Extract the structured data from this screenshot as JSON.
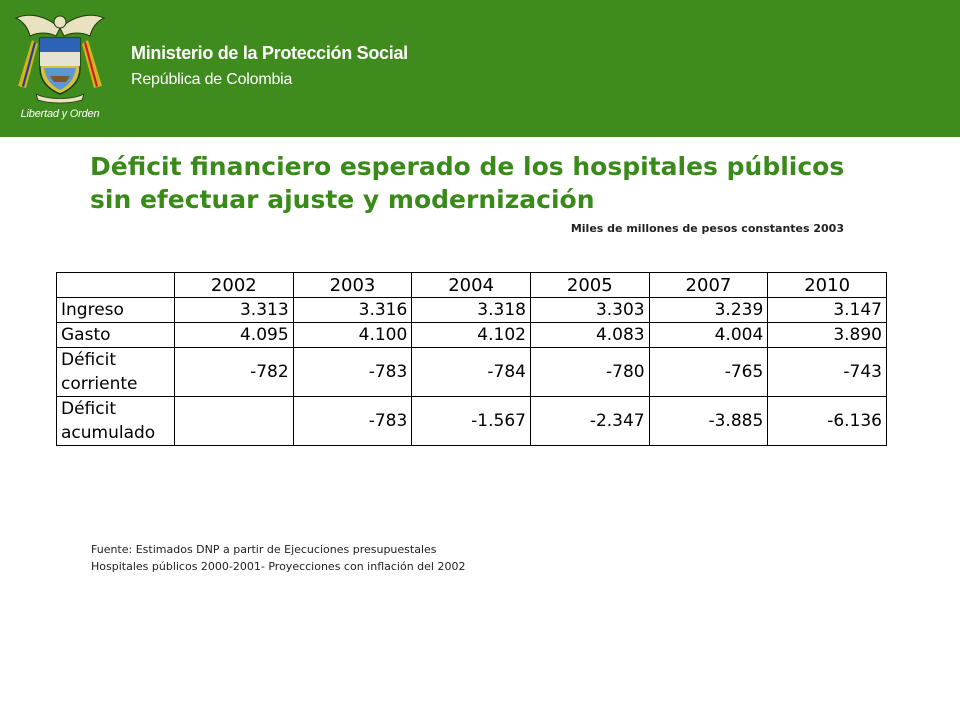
{
  "header": {
    "crest_caption": "Libertad y Orden",
    "ministry": "Ministerio de la Protección Social",
    "republic": "República de Colombia",
    "colors": {
      "band": "#3f8b1d",
      "title": "#3a8a1a"
    },
    "crest_icon": "colombia-coat-of-arms-icon"
  },
  "title": {
    "line1": "Déficit financiero esperado de los hospitales públicos",
    "line2": "sin efectuar ajuste y modernización"
  },
  "units": "Miles de millones de pesos constantes 2003",
  "table": {
    "headers": [
      "",
      "2002",
      "2003",
      "2004",
      "2005",
      "2007",
      "2010"
    ],
    "rows": [
      {
        "label": "Ingreso",
        "values": [
          "3.313",
          "3.316",
          "3.318",
          "3.303",
          "3.239",
          "3.147"
        ]
      },
      {
        "label": "Gasto",
        "values": [
          "4.095",
          "4.100",
          "4.102",
          "4.083",
          "4.004",
          "3.890"
        ]
      },
      {
        "label": "Déficit corriente",
        "values": [
          "-782",
          "-783",
          "-784",
          "-780",
          "-765",
          "-743"
        ]
      },
      {
        "label": "Déficit acumulado",
        "values": [
          "",
          "-783",
          "-1.567",
          "-2.347",
          "-3.885",
          "-6.136"
        ]
      }
    ]
  },
  "source": {
    "line1": "Fuente: Estimados DNP a partir de Ejecuciones presupuestales",
    "line2": "Hospitales públicos 2000-2001- Proyecciones con inflación del 2002"
  }
}
